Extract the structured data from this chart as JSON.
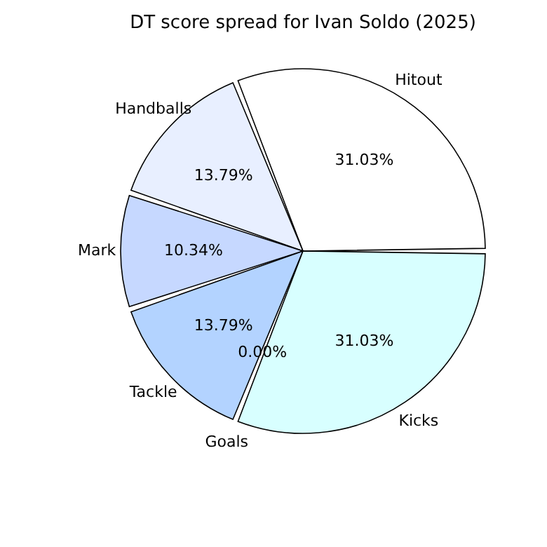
{
  "chart_data": {
    "type": "pie",
    "title": "DT score spread for Ivan Soldo (2025)",
    "categories": [
      "Hitout",
      "Handballs",
      "Mark",
      "Tackle",
      "Goals",
      "Kicks"
    ],
    "values": [
      31.03,
      13.79,
      10.34,
      13.79,
      0.0,
      31.03
    ],
    "value_labels": [
      "31.03%",
      "13.79%",
      "10.34%",
      "13.79%",
      "0.00%",
      "31.03%"
    ],
    "colors": [
      "#ffffff",
      "#e8efff",
      "#c6d8ff",
      "#b3d3ff",
      "#c0f0ff",
      "#d8ffff"
    ],
    "legend": false
  }
}
